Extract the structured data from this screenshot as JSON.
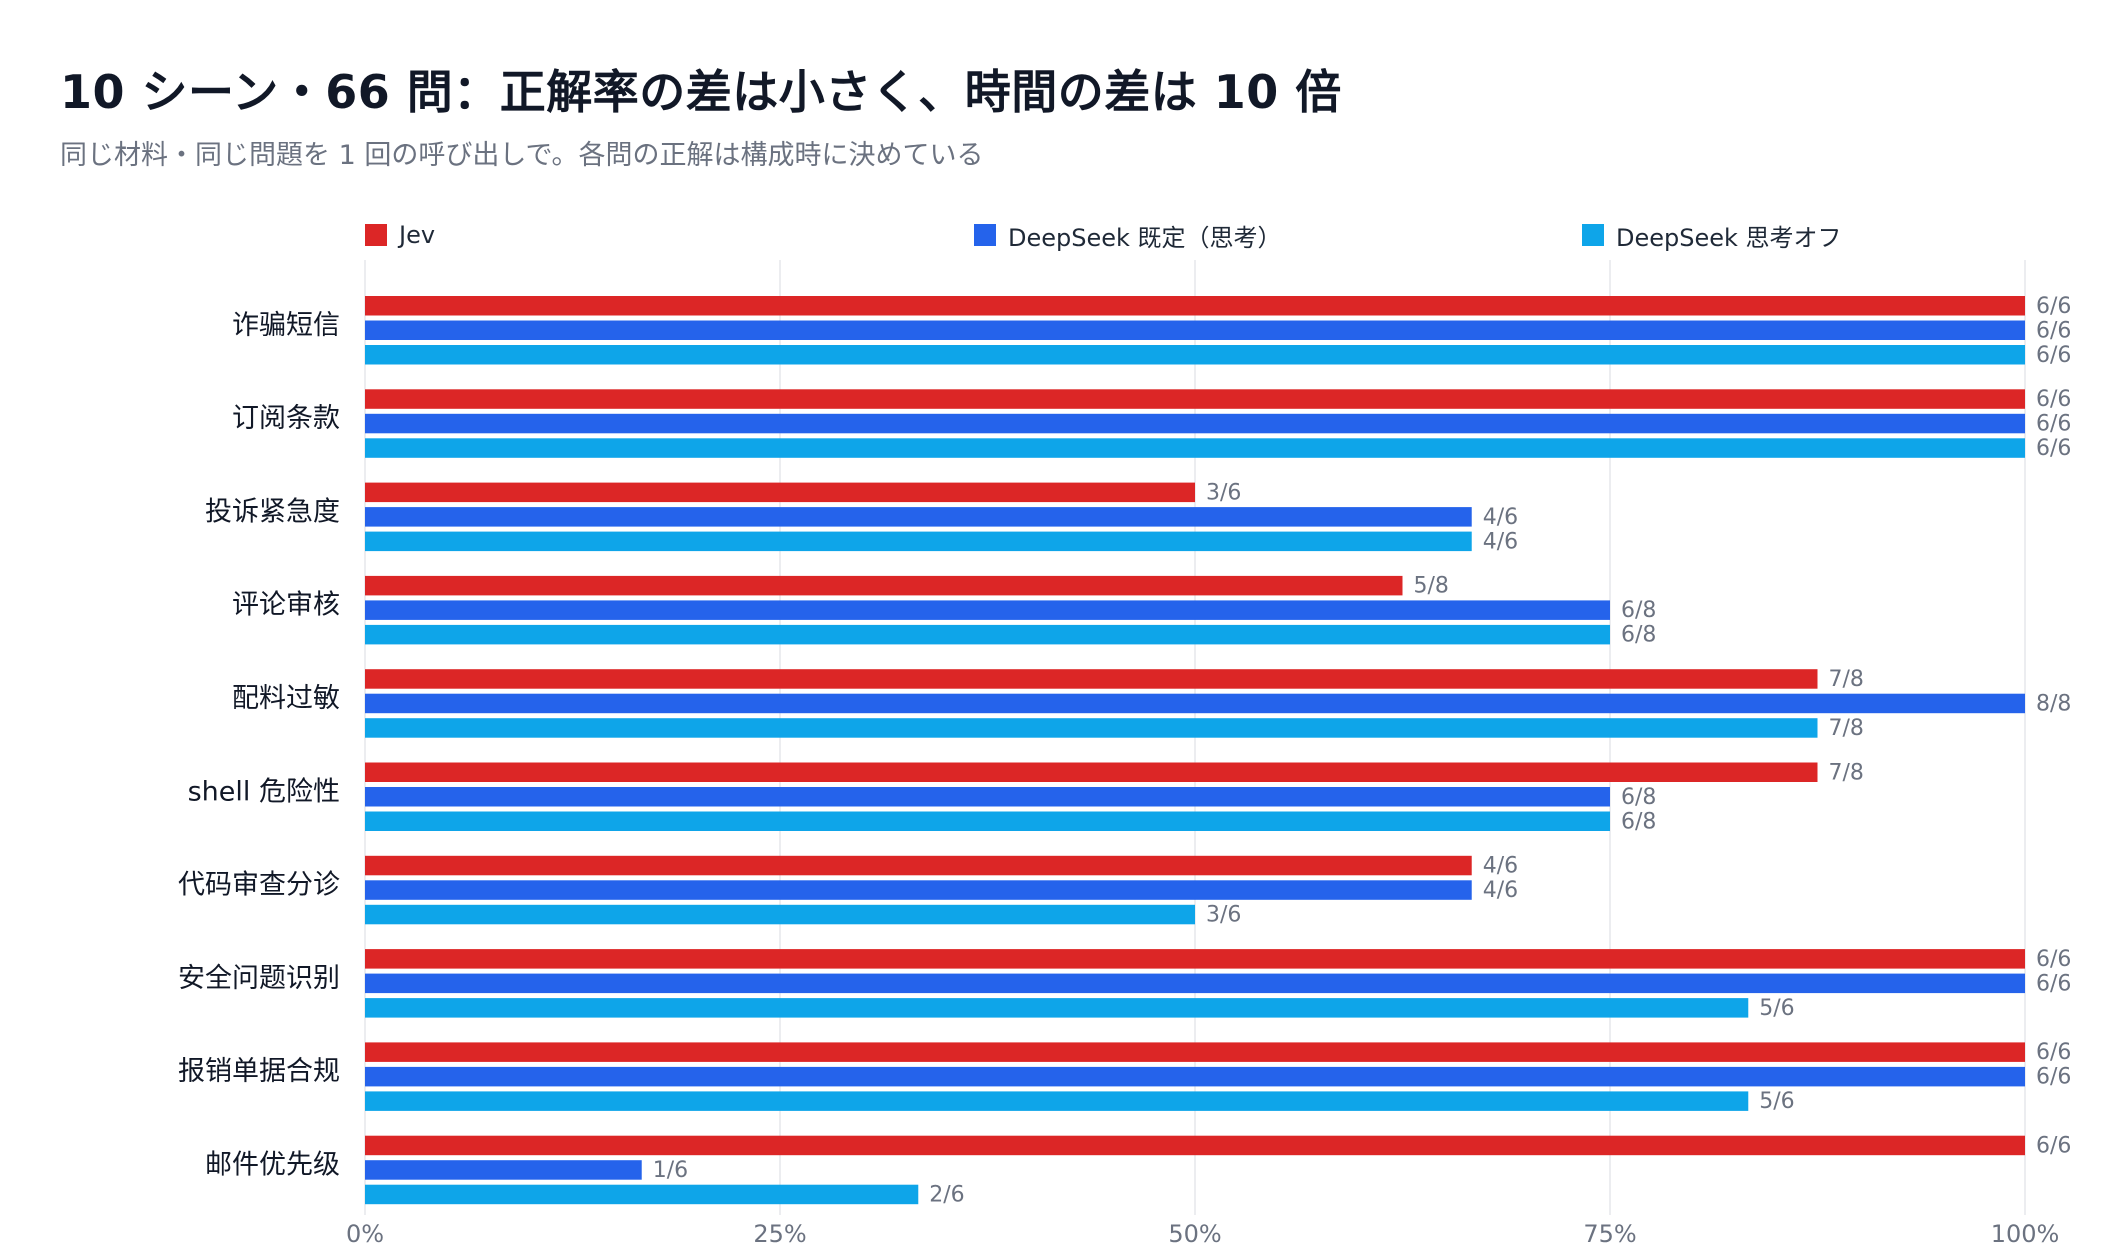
{
  "title": "10 シーン・66 問：正解率の差は小さく、時間の差は 10 倍",
  "subtitle": "同じ材料・同じ問題を 1 回の呼び出しで。各問の正解は構成時に決めている",
  "colors": {
    "jev": "#dc2626",
    "deepseek_default": "#2563eb",
    "deepseek_off": "#0ea5e9",
    "grid": "#e5e7eb",
    "axis_text": "#6b7280",
    "category_text": "#111827"
  },
  "chart_data": {
    "type": "bar",
    "orientation": "horizontal",
    "categories": [
      "诈骗短信",
      "订阅条款",
      "投诉紧急度",
      "评论审核",
      "配料过敏",
      "shell 危险性",
      "代码审查分诊",
      "安全问题识别",
      "报销单据合规",
      "邮件优先级"
    ],
    "series": [
      {
        "name": "Jev",
        "values": [
          1.0,
          1.0,
          0.5,
          0.625,
          0.875,
          0.875,
          0.6667,
          1.0,
          1.0,
          1.0
        ],
        "labels": [
          "6/6",
          "6/6",
          "3/6",
          "5/8",
          "7/8",
          "7/8",
          "4/6",
          "6/6",
          "6/6",
          "6/6"
        ]
      },
      {
        "name": "DeepSeek 既定（思考）",
        "values": [
          1.0,
          1.0,
          0.6667,
          0.75,
          1.0,
          0.75,
          0.6667,
          1.0,
          1.0,
          0.1667
        ],
        "labels": [
          "6/6",
          "6/6",
          "4/6",
          "6/8",
          "8/8",
          "6/8",
          "4/6",
          "6/6",
          "6/6",
          "1/6"
        ]
      },
      {
        "name": "DeepSeek 思考オフ",
        "values": [
          1.0,
          1.0,
          0.6667,
          0.75,
          0.875,
          0.75,
          0.5,
          0.8333,
          0.8333,
          0.3333
        ],
        "labels": [
          "6/6",
          "6/6",
          "4/6",
          "6/8",
          "7/8",
          "6/8",
          "3/6",
          "5/6",
          "5/6",
          "2/6"
        ]
      }
    ],
    "xlim": [
      0,
      1
    ],
    "x_ticks": [
      "0%",
      "25%",
      "50%",
      "75%",
      "100%"
    ],
    "grid": true,
    "legend_position": "top"
  }
}
